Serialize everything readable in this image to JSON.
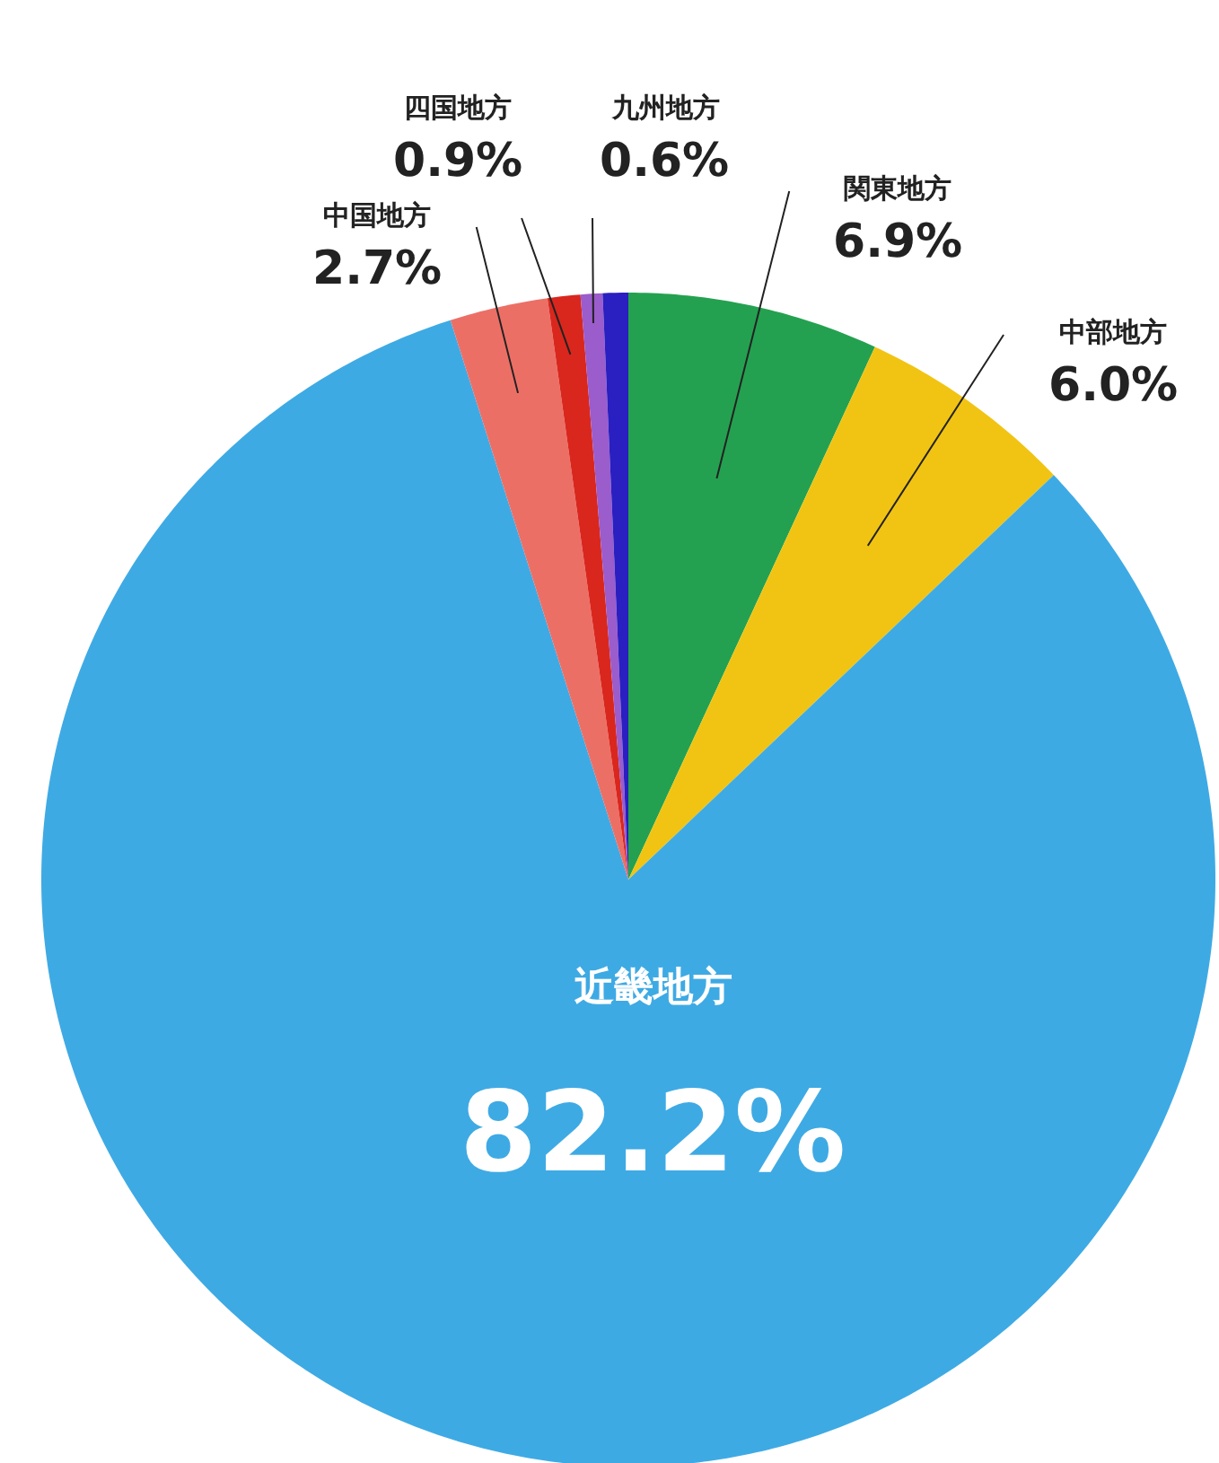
{
  "chart_data": {
    "type": "pie",
    "categories": [
      "関東地方",
      "中部地方",
      "近畿地方",
      "中国地方",
      "四国地方",
      "九州地方",
      null
    ],
    "values": [
      6.9,
      6.0,
      82.2,
      2.7,
      0.9,
      0.6,
      0.7
    ],
    "colors": [
      "#24a150",
      "#f1c413",
      "#3eaae4",
      "#ec6f66",
      "#d9271e",
      "#9b5ccc",
      "#2a1fc0"
    ],
    "value_labels": [
      "6.9%",
      "6.0%",
      "82.2%",
      "2.7%",
      "0.9%",
      "0.6%",
      null
    ]
  }
}
